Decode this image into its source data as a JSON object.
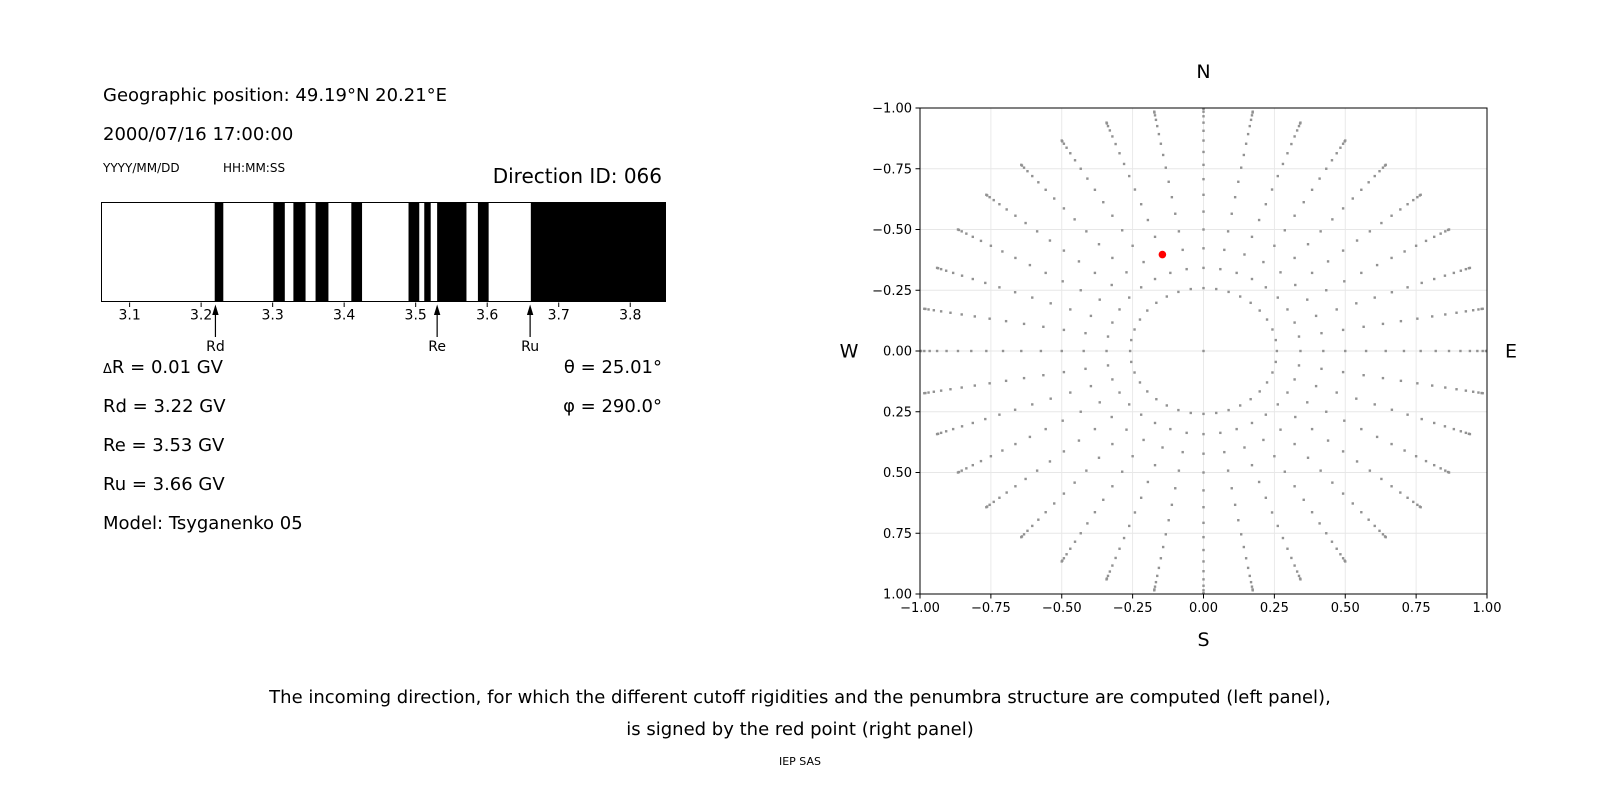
{
  "header": {
    "geographic_position": "Geographic position: 49.19°N 20.21°E",
    "datetime": "2000/07/16 17:00:00",
    "date_format_label": "YYYY/MM/DD",
    "time_format_label": "HH:MM:SS",
    "direction_id": "Direction ID: 066"
  },
  "parameters": {
    "delta_symbol": "Δ",
    "delta_rest": "R = 0.01 GV",
    "rd": "Rd = 3.22 GV",
    "re": "Re = 3.53 GV",
    "ru": "Ru = 3.66 GV",
    "model": "Model: Tsyganenko 05",
    "theta": "θ = 25.01°",
    "phi": "φ = 290.0°"
  },
  "caption": {
    "line1": "The incoming direction, for which the different cutoff rigidities and the penumbra structure are computed (left panel),",
    "line2": "is signed by the red point (right panel)",
    "credit": "IEP SAS"
  },
  "chart_data": [
    {
      "type": "bar",
      "subtype": "penumbra-barcode",
      "x_range": [
        3.06,
        3.85
      ],
      "x_ticks": [
        3.1,
        3.2,
        3.3,
        3.4,
        3.5,
        3.6,
        3.7,
        3.8
      ],
      "x_unit": "GV",
      "bar_color": "#000000",
      "bars_gv": [
        [
          3.219,
          3.231
        ],
        [
          3.301,
          3.317
        ],
        [
          3.329,
          3.346
        ],
        [
          3.36,
          3.378
        ],
        [
          3.41,
          3.425
        ],
        [
          3.49,
          3.505
        ],
        [
          3.512,
          3.521
        ],
        [
          3.53,
          3.571
        ],
        [
          3.587,
          3.602
        ],
        [
          3.661,
          3.85
        ]
      ],
      "arrows": [
        {
          "label": "Rd",
          "value_gv": 3.22
        },
        {
          "label": "Re",
          "value_gv": 3.53
        },
        {
          "label": "Ru",
          "value_gv": 3.66
        }
      ]
    },
    {
      "type": "scatter",
      "subtype": "incoming-direction-skymap",
      "x_range": [
        -1,
        1
      ],
      "y_range": [
        -1,
        1
      ],
      "ticks": [
        -1,
        -0.75,
        -0.5,
        -0.25,
        0,
        0.25,
        0.5,
        0.75,
        1
      ],
      "tick_labels": [
        "−1.00",
        "−0.75",
        "−0.50",
        "−0.25",
        "0.00",
        "0.25",
        "0.50",
        "0.75",
        "1.00"
      ],
      "grid": true,
      "grid_color": "#e7e7e7",
      "compass": {
        "top": "N",
        "bottom": "S",
        "left": "W",
        "right": "E"
      },
      "dot_color": "#929292",
      "direction_grid": {
        "azimuth_deg": {
          "start": 0,
          "step": 10,
          "count": 36
        },
        "zenith_deg": {
          "start": 15,
          "step": 5,
          "end": 90
        },
        "radius": "sin(zenith)",
        "center_dot": true
      },
      "red_point": {
        "x": -0.145,
        "y": 0.397,
        "color": "#ff0000"
      }
    }
  ]
}
